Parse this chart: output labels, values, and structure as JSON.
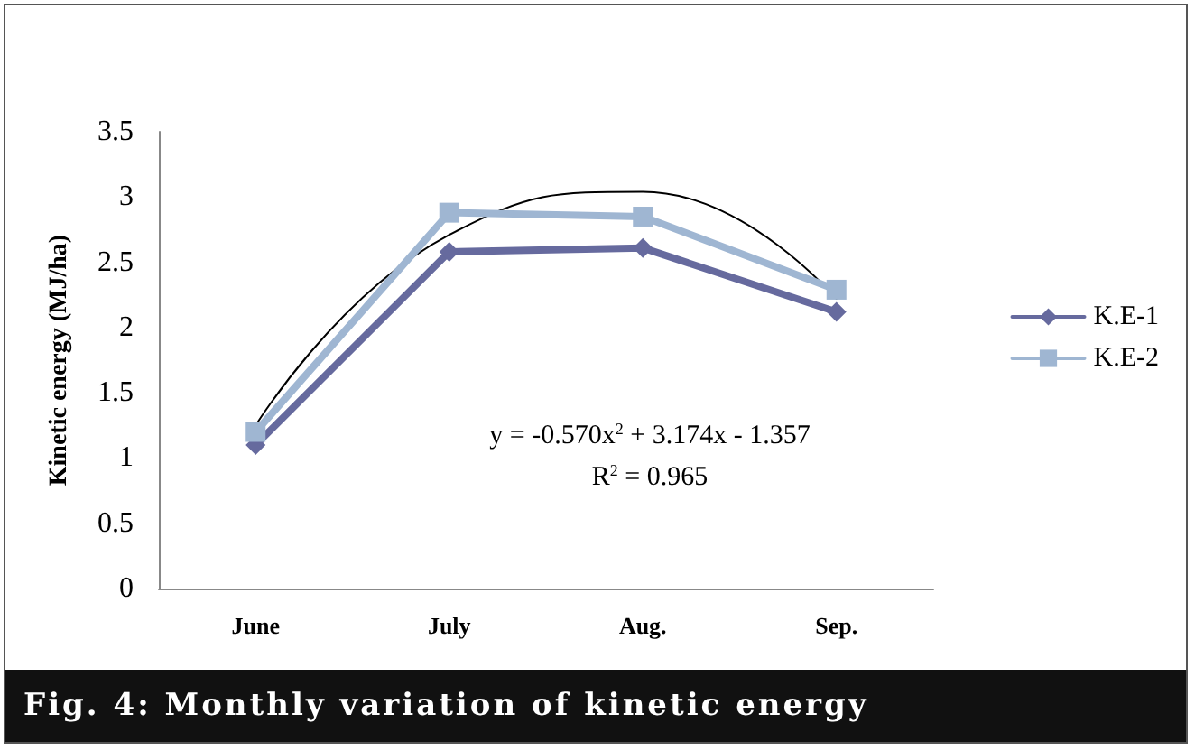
{
  "chart_data": {
    "type": "line",
    "title": "Fig. 4: Monthly variation of kinetic energy",
    "ylabel": "Kinetic energy (MJ/ha)",
    "categories": [
      "June",
      "July",
      "Aug.",
      "Sep."
    ],
    "series": [
      {
        "name": "K.E-1",
        "color": "#666a9e",
        "marker": "diamond",
        "values": [
          1.1,
          2.58,
          2.61,
          2.12
        ]
      },
      {
        "name": "K.E-2",
        "color": "#9fb6d2",
        "marker": "square",
        "values": [
          1.2,
          2.88,
          2.85,
          2.29
        ]
      },
      {
        "color": "#000000",
        "marker": "none",
        "values": [
          1.25,
          2.71,
          3.04,
          2.22
        ]
      }
    ],
    "annotations": [
      "y = -0.570x$^{2}$ + 3.174x - 1.357",
      "R$^{2}$ = 0.965"
    ],
    "ylim": [
      0,
      3.5
    ],
    "yticks": [
      0,
      0.5,
      1,
      1.5,
      2,
      2.5,
      3,
      3.5
    ],
    "grid": false,
    "legend": "right"
  }
}
